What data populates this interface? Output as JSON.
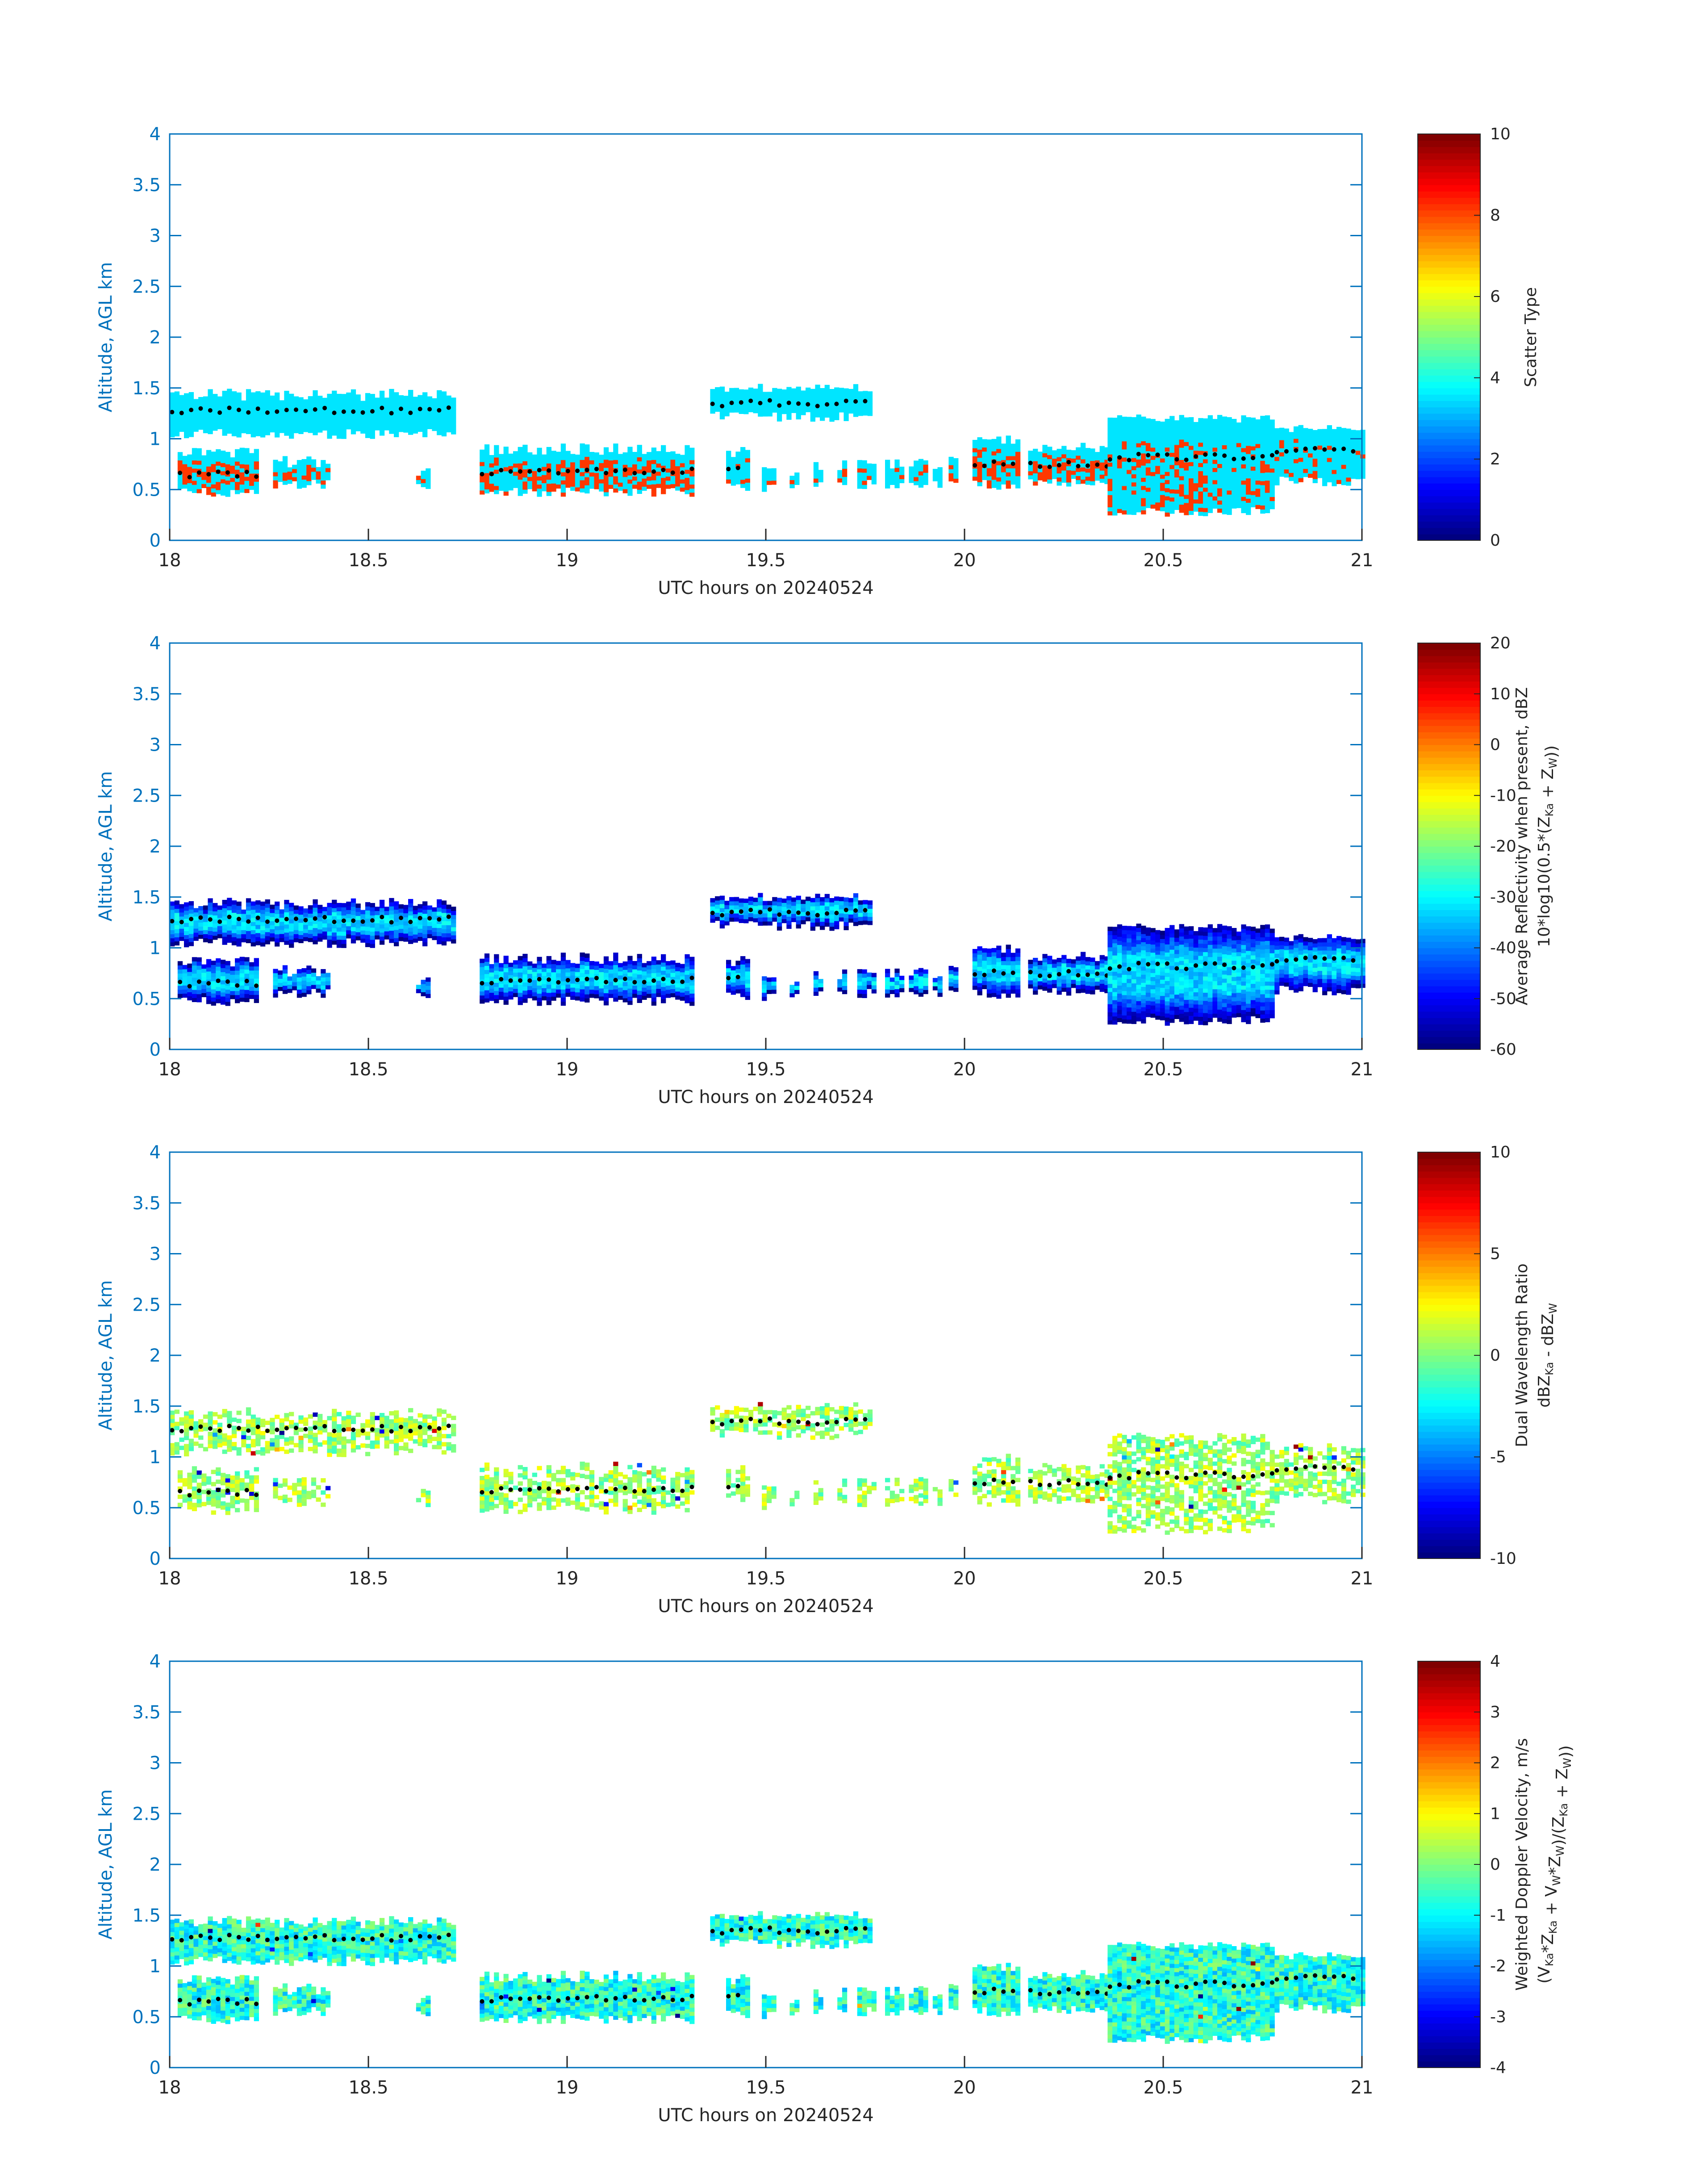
{
  "chart_data": [
    {
      "type": "heatmap",
      "panel_id": "scatter_type",
      "xlabel": "UTC hours on 20240524",
      "ylabel": "Altitude, AGL km",
      "xlim": [
        18,
        21
      ],
      "ylim": [
        0,
        4
      ],
      "xticks": [
        "18",
        "18.5",
        "19",
        "19.5",
        "20",
        "20.5",
        "21"
      ],
      "yticks": [
        "0",
        "0.5",
        "1",
        "1.5",
        "2",
        "2.5",
        "3",
        "3.5",
        "4"
      ],
      "colorbar": {
        "colormap": "jet",
        "clim": [
          0,
          10
        ],
        "ticks": [
          "0",
          "2",
          "4",
          "6",
          "8",
          "10"
        ],
        "label_lines": [
          {
            "text": "Scatter Type"
          }
        ]
      },
      "field": "scatter_type",
      "field_values": {
        "cloud_layers": 3.5,
        "rain_columns": 8.2
      }
    },
    {
      "type": "heatmap",
      "panel_id": "reflectivity",
      "xlabel": "UTC hours on 20240524",
      "ylabel": "Altitude, AGL km",
      "xlim": [
        18,
        21
      ],
      "ylim": [
        0,
        4
      ],
      "xticks": [
        "18",
        "18.5",
        "19",
        "19.5",
        "20",
        "20.5",
        "21"
      ],
      "yticks": [
        "0",
        "0.5",
        "1",
        "1.5",
        "2",
        "2.5",
        "3",
        "3.5",
        "4"
      ],
      "colorbar": {
        "colormap": "jet",
        "clim": [
          -60,
          20
        ],
        "ticks": [
          "-60",
          "-50",
          "-40",
          "-30",
          "-20",
          "-10",
          "0",
          "10",
          "20"
        ],
        "label_lines": [
          {
            "text": "Average Reflectivity when present, dBZ"
          },
          {
            "text": "10*log10(0.5*(Z",
            "sub1": "Ka",
            "mid": " + Z",
            "sub2": "W",
            "end": "))"
          }
        ]
      },
      "field": "reflectivity",
      "field_values": {
        "layer_edge": -58,
        "layer_core": -33
      }
    },
    {
      "type": "heatmap",
      "panel_id": "dual_wavelength_ratio",
      "xlabel": "UTC hours on 20240524",
      "ylabel": "Altitude, AGL km",
      "xlim": [
        18,
        21
      ],
      "ylim": [
        0,
        4
      ],
      "xticks": [
        "18",
        "18.5",
        "19",
        "19.5",
        "20",
        "20.5",
        "21"
      ],
      "yticks": [
        "0",
        "0.5",
        "1",
        "1.5",
        "2",
        "2.5",
        "3",
        "3.5",
        "4"
      ],
      "colorbar": {
        "colormap": "jet",
        "clim": [
          -10,
          10
        ],
        "ticks": [
          "-10",
          "-5",
          "0",
          "5",
          "10"
        ],
        "label_lines": [
          {
            "text": "Dual Wavelength Ratio"
          },
          {
            "text": "dBZ",
            "sub1": "Ka",
            "mid": " - dBZ",
            "sub2": "W",
            "end": ""
          }
        ]
      },
      "field": "dwr",
      "field_values": {
        "typical_min": -3.5,
        "typical_max": 2.5
      }
    },
    {
      "type": "heatmap",
      "panel_id": "doppler_velocity",
      "xlabel": "UTC hours on 20240524",
      "ylabel": "Altitude, AGL km",
      "xlim": [
        18,
        21
      ],
      "ylim": [
        0,
        4
      ],
      "xticks": [
        "18",
        "18.5",
        "19",
        "19.5",
        "20",
        "20.5",
        "21"
      ],
      "yticks": [
        "0",
        "0.5",
        "1",
        "1.5",
        "2",
        "2.5",
        "3",
        "3.5",
        "4"
      ],
      "colorbar": {
        "colormap": "jet",
        "clim": [
          -4,
          4
        ],
        "ticks": [
          "-4",
          "-3",
          "-2",
          "-1",
          "0",
          "1",
          "2",
          "3",
          "4"
        ],
        "label_lines": [
          {
            "text": "Weighted Doppler Velocity, m/s"
          },
          {
            "text": "(V",
            "sub1": "Ka",
            "mid": "*Z",
            "sub2": "Ka",
            "end": " + V",
            "sub3": "W",
            "end2": "*Z",
            "sub4": "W",
            "end3": ")/(Z",
            "sub5": "Ka",
            "end4": " + Z",
            "sub6": "W",
            "end5": "))"
          }
        ]
      },
      "field": "velocity",
      "field_values": {
        "typical_min": -1.6,
        "typical_max": 0.2
      }
    }
  ],
  "echo_segments": [
    {
      "t0": 18.0,
      "t1": 18.72,
      "bot": 1.05,
      "top": 1.42,
      "cbh": 1.28
    },
    {
      "t0": 18.02,
      "t1": 18.22,
      "bot": 0.48,
      "top": 0.85,
      "cbh": 0.65
    },
    {
      "t0": 18.26,
      "t1": 18.4,
      "bot": 0.55,
      "top": 0.76,
      "cbh": 0.0
    },
    {
      "t0": 18.62,
      "t1": 18.65,
      "bot": 0.55,
      "top": 0.66,
      "cbh": 0.0
    },
    {
      "t0": 18.78,
      "t1": 19.32,
      "bot": 0.48,
      "top": 0.88,
      "cbh": 0.68
    },
    {
      "t0": 19.36,
      "t1": 19.76,
      "bot": 1.22,
      "top": 1.48,
      "cbh": 1.35
    },
    {
      "t0": 19.4,
      "t1": 19.45,
      "bot": 0.52,
      "top": 0.85,
      "cbh": 0.72
    },
    {
      "t0": 19.49,
      "t1": 19.52,
      "bot": 0.52,
      "top": 0.7,
      "cbh": 0.0
    },
    {
      "t0": 19.56,
      "t1": 19.58,
      "bot": 0.5,
      "top": 0.66,
      "cbh": 0.0
    },
    {
      "t0": 19.62,
      "t1": 19.64,
      "bot": 0.56,
      "top": 0.72,
      "cbh": 0.0
    },
    {
      "t0": 19.68,
      "t1": 19.7,
      "bot": 0.56,
      "top": 0.72,
      "cbh": 0.0
    },
    {
      "t0": 19.73,
      "t1": 19.77,
      "bot": 0.55,
      "top": 0.76,
      "cbh": 0.0
    },
    {
      "t0": 19.8,
      "t1": 19.84,
      "bot": 0.55,
      "top": 0.74,
      "cbh": 0.0
    },
    {
      "t0": 19.86,
      "t1": 19.9,
      "bot": 0.55,
      "top": 0.74,
      "cbh": 0.0
    },
    {
      "t0": 19.92,
      "t1": 19.94,
      "bot": 0.55,
      "top": 0.7,
      "cbh": 0.0
    },
    {
      "t0": 19.96,
      "t1": 19.98,
      "bot": 0.6,
      "top": 0.76,
      "cbh": 0.0
    },
    {
      "t0": 20.02,
      "t1": 20.14,
      "bot": 0.55,
      "top": 0.98,
      "cbh": 0.75
    },
    {
      "t0": 20.16,
      "t1": 20.36,
      "bot": 0.58,
      "top": 0.88,
      "cbh": 0.75
    },
    {
      "t0": 20.36,
      "t1": 20.78,
      "bot": 0.28,
      "top": 1.18,
      "cbh": 0.82
    },
    {
      "t0": 20.78,
      "t1": 21.0,
      "bot": 0.58,
      "top": 1.08,
      "cbh": 0.88
    }
  ],
  "bright_segments": [
    {
      "t0": 18.02,
      "t1": 18.22
    },
    {
      "t0": 18.78,
      "t1": 19.32
    },
    {
      "t0": 20.02,
      "t1": 20.36
    },
    {
      "t0": 20.48,
      "t1": 20.6
    }
  ]
}
